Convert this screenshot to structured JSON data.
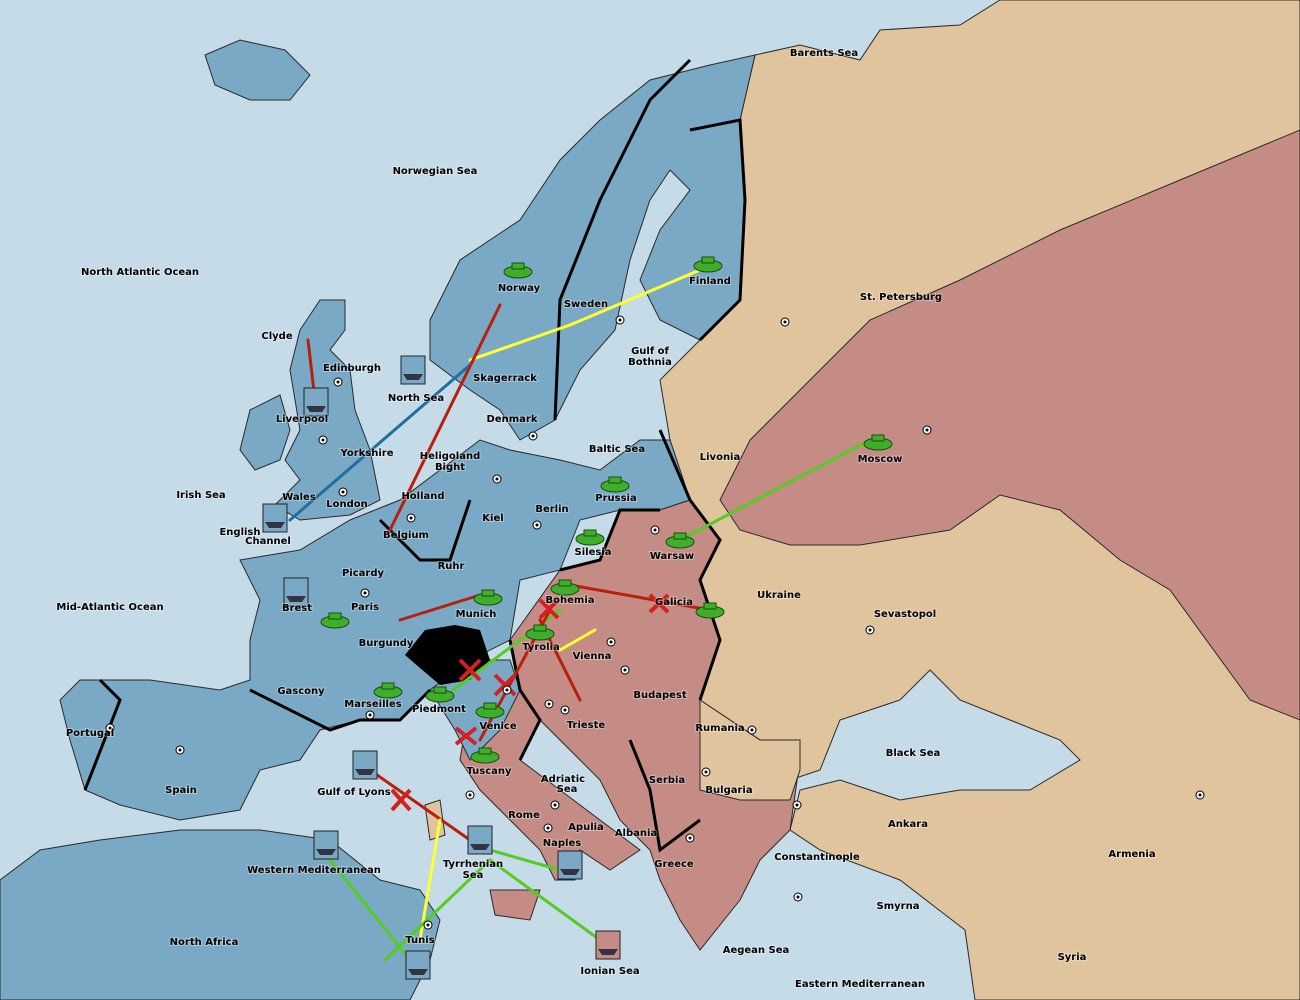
{
  "regions": [
    {
      "label": "Barents Sea"
    },
    {
      "label": "Norwegian Sea"
    },
    {
      "label": "North Atlantic Ocean"
    },
    {
      "label": "Finland"
    },
    {
      "label": "Norway"
    },
    {
      "label": "Sweden"
    },
    {
      "label": "St. Petersburg"
    },
    {
      "label": "Clyde"
    },
    {
      "label": "Gulf of"
    },
    {
      "label": "Bothnia"
    },
    {
      "label": "Edinburgh"
    },
    {
      "label": "Skagerrack"
    },
    {
      "label": "North Sea"
    },
    {
      "label": "Liverpool"
    },
    {
      "label": "Denmark"
    },
    {
      "label": "Baltic Sea"
    },
    {
      "label": "Yorkshire"
    },
    {
      "label": "Livonia"
    },
    {
      "label": "Heligoland"
    },
    {
      "label": "Bight"
    },
    {
      "label": "Moscow"
    },
    {
      "label": "Irish Sea"
    },
    {
      "label": "Prussia"
    },
    {
      "label": "Holland"
    },
    {
      "label": "Wales"
    },
    {
      "label": "London"
    },
    {
      "label": "Berlin"
    },
    {
      "label": "Kiel"
    },
    {
      "label": "English"
    },
    {
      "label": "Channel"
    },
    {
      "label": "Belgium"
    },
    {
      "label": "Warsaw"
    },
    {
      "label": "Silesia"
    },
    {
      "label": "Ruhr"
    },
    {
      "label": "Picardy"
    },
    {
      "label": "Ukraine"
    },
    {
      "label": "Bohemia"
    },
    {
      "label": "Galicia"
    },
    {
      "label": "Mid-Atlantic Ocean"
    },
    {
      "label": "Brest"
    },
    {
      "label": "Paris"
    },
    {
      "label": "Sevastopol"
    },
    {
      "label": "Munich"
    },
    {
      "label": "Burgundy"
    },
    {
      "label": "Tyrolia"
    },
    {
      "label": "Vienna"
    },
    {
      "label": "Gascony"
    },
    {
      "label": "Budapest"
    },
    {
      "label": "Marseilles"
    },
    {
      "label": "Piedmont"
    },
    {
      "label": "Venice"
    },
    {
      "label": "Portugal"
    },
    {
      "label": "Rumania"
    },
    {
      "label": "Trieste"
    },
    {
      "label": "Black Sea"
    },
    {
      "label": "Tuscany"
    },
    {
      "label": "Spain"
    },
    {
      "label": "Adriatic"
    },
    {
      "label": "Sea"
    },
    {
      "label": "Gulf of Lyons"
    },
    {
      "label": "Serbia"
    },
    {
      "label": "Bulgaria"
    },
    {
      "label": "Rome"
    },
    {
      "label": "Apulia"
    },
    {
      "label": "Ankara"
    },
    {
      "label": "Albania"
    },
    {
      "label": "Naples"
    },
    {
      "label": "Tyrrhenian"
    },
    {
      "label": "Sea"
    },
    {
      "label": "Constantinople"
    },
    {
      "label": "Armenia"
    },
    {
      "label": "Western Mediterranean"
    },
    {
      "label": "Greece"
    },
    {
      "label": "Smyrna"
    },
    {
      "label": "North Africa"
    },
    {
      "label": "Tunis"
    },
    {
      "label": "Aegean Sea"
    },
    {
      "label": "Syria"
    },
    {
      "label": "Ionian Sea"
    },
    {
      "label": "Eastern Mediterranean"
    }
  ]
}
